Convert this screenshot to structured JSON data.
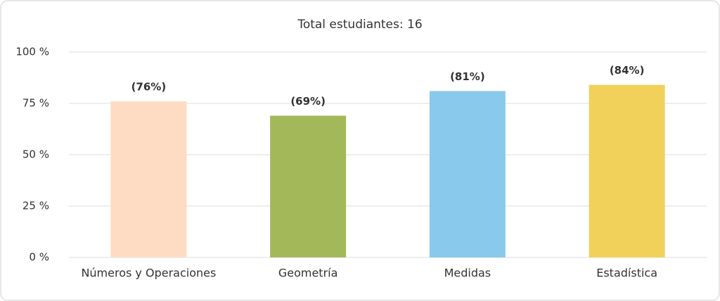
{
  "chart_data": {
    "type": "bar",
    "title": "Total estudiantes: 16",
    "categories": [
      "Números y Operaciones",
      "Geometría",
      "Medidas",
      "Estadística"
    ],
    "values": [
      76,
      69,
      81,
      84
    ],
    "value_labels": [
      "(76%)",
      "(69%)",
      "(81%)",
      "(84%)"
    ],
    "colors": [
      "#fddcc3",
      "#a3b858",
      "#88c9ec",
      "#f1d159"
    ],
    "ylim": [
      0,
      100
    ],
    "yticks": [
      {
        "value": 0,
        "label": "0 %"
      },
      {
        "value": 25,
        "label": "25 %"
      },
      {
        "value": 50,
        "label": "50 %"
      },
      {
        "value": 75,
        "label": "75 %"
      },
      {
        "value": 100,
        "label": "100 %"
      }
    ],
    "grid": true
  }
}
